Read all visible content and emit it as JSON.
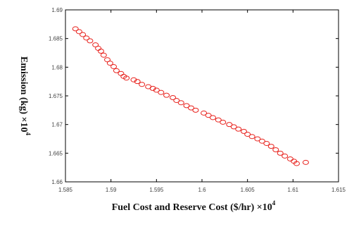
{
  "chart_data": {
    "type": "scatter",
    "title": "",
    "xlabel": "Fuel Cost and Reserve  Cost ($/hr) ×10",
    "xlabel_exponent": "4",
    "ylabel": "Emission  (kg) ×10",
    "ylabel_exponent": "4",
    "xlim": [
      1.585,
      1.615
    ],
    "ylim": [
      1.66,
      1.69
    ],
    "xticks": [
      1.585,
      1.59,
      1.595,
      1.6,
      1.605,
      1.61,
      1.615
    ],
    "yticks": [
      1.66,
      1.665,
      1.67,
      1.675,
      1.68,
      1.685,
      1.69
    ],
    "xtick_labels": [
      "1.585",
      "1.59",
      "1.595",
      "1.6",
      "1.605",
      "1.61",
      "1.615"
    ],
    "ytick_labels": [
      "1.66",
      "1.665",
      "1.67",
      "1.675",
      "1.68",
      "1.685",
      "1.69"
    ],
    "grid": false,
    "legend": "none",
    "marker": "circle",
    "marker_color": "#e8231e",
    "series": [
      {
        "x": [
          1.5861,
          1.5865,
          1.5869,
          1.5873,
          1.5877,
          1.5883,
          1.5886,
          1.5889,
          1.5892,
          1.5896,
          1.5899,
          1.5903,
          1.5906,
          1.5911,
          1.5914,
          1.5917,
          1.5925,
          1.5929,
          1.5934,
          1.5941,
          1.5946,
          1.595,
          1.5955,
          1.5961,
          1.5968,
          1.5972,
          1.5977,
          1.5983,
          1.5988,
          1.5993,
          1.6002,
          1.6007,
          1.6012,
          1.6018,
          1.6023,
          1.603,
          1.6035,
          1.604,
          1.6046,
          1.605,
          1.6055,
          1.6061,
          1.6066,
          1.6071,
          1.6076,
          1.6081,
          1.6086,
          1.6091,
          1.6097,
          1.6101,
          1.6104,
          1.6114
        ],
        "y": [
          1.6867,
          1.6862,
          1.6857,
          1.6851,
          1.6846,
          1.6839,
          1.6833,
          1.6828,
          1.6821,
          1.6813,
          1.6807,
          1.6801,
          1.6794,
          1.6789,
          1.6784,
          1.6781,
          1.6778,
          1.6775,
          1.677,
          1.6766,
          1.6763,
          1.676,
          1.6756,
          1.6751,
          1.6747,
          1.6742,
          1.6738,
          1.6733,
          1.6729,
          1.6725,
          1.672,
          1.6716,
          1.6712,
          1.6708,
          1.6704,
          1.67,
          1.6696,
          1.6692,
          1.6688,
          1.6683,
          1.6679,
          1.6675,
          1.6671,
          1.6667,
          1.6662,
          1.6656,
          1.665,
          1.6645,
          1.664,
          1.6636,
          1.6632,
          1.6634
        ]
      }
    ]
  }
}
